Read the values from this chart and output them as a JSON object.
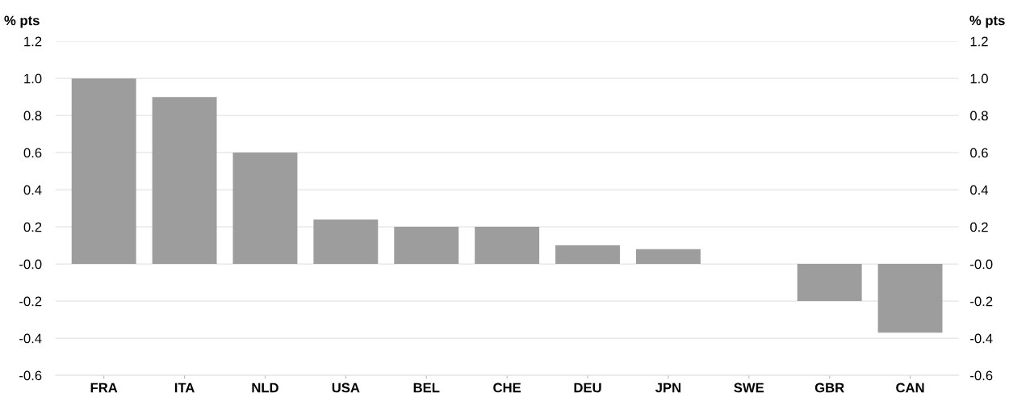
{
  "chart_data": {
    "type": "bar",
    "ylabel": "% pts",
    "y2label": "% pts",
    "categories": [
      "FRA",
      "ITA",
      "NLD",
      "USA",
      "BEL",
      "CHE",
      "DEU",
      "JPN",
      "SWE",
      "GBR",
      "CAN"
    ],
    "values": [
      1.0,
      0.9,
      0.6,
      0.24,
      0.2,
      0.2,
      0.1,
      0.08,
      0.0,
      -0.2,
      -0.37
    ],
    "color": "#9d9d9d",
    "ylim": [
      -0.6,
      1.2
    ],
    "yticks": [
      -0.6,
      -0.4,
      -0.2,
      {
        "value": 0,
        "label": "-0.0"
      },
      0.2,
      0.4,
      0.6,
      0.8,
      {
        "value": 1,
        "label": "1.0"
      },
      1.2
    ],
    "y2lim": [
      -0.6,
      1.2
    ],
    "y2ticks": [
      -0.6,
      -0.4,
      -0.2,
      {
        "value": 0,
        "label": "-0.0"
      },
      0.2,
      0.4,
      0.6,
      0.8,
      {
        "value": 1,
        "label": "1.0"
      },
      1.2
    ],
    "grid": "y"
  }
}
